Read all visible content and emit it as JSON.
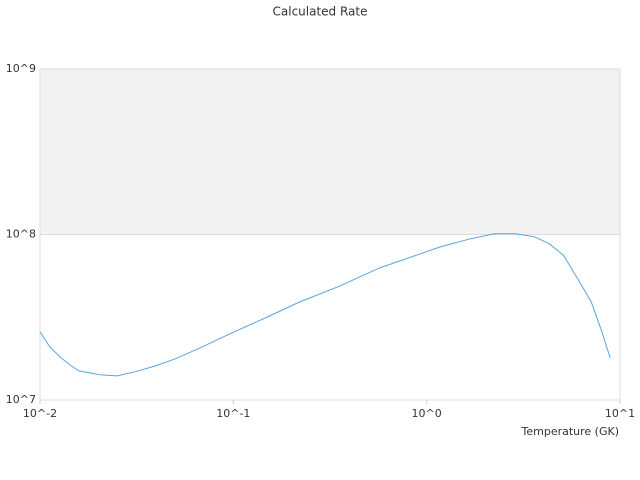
{
  "chart_data": {
    "type": "line",
    "title": "Calculated Rate",
    "x_label": "Temperature (GK)",
    "x": [
      0.01,
      0.01126,
      0.0127,
      0.0143,
      0.0159,
      0.0204,
      0.025,
      0.031,
      0.039,
      0.05,
      0.067,
      0.096,
      0.146,
      0.22,
      0.355,
      0.57,
      0.92,
      1.17,
      1.67,
      2.24,
      2.86,
      3.6,
      4.3,
      5.1,
      6.1,
      7.1,
      8.0,
      8.9
    ],
    "values": [
      25800000,
      20900000,
      18200000,
      16300000,
      15000000,
      14200000,
      14000000,
      14800000,
      16000000,
      17700000,
      20600000,
      25100000,
      31300000,
      39100000,
      48800000,
      62800000,
      76200000,
      84000000,
      94000000,
      101000000,
      101000000,
      97000000,
      88000000,
      75000000,
      53000000,
      39100000,
      26500000,
      17900000
    ],
    "color": "#5ba3e0",
    "xlim": [
      0.01,
      10
    ],
    "ylim": [
      10000000,
      1000000000
    ],
    "xticks": [
      {
        "value": 0.01,
        "label": "10^-2"
      },
      {
        "value": 0.1,
        "label": "10^-1"
      },
      {
        "value": 1,
        "label": "10^0"
      },
      {
        "value": 10,
        "label": "10^1"
      }
    ],
    "yticks": [
      {
        "value": 10000000,
        "label": "10^7"
      },
      {
        "value": 100000000,
        "label": "10^8"
      },
      {
        "value": 1000000000,
        "label": "10^9"
      }
    ],
    "xlog": true,
    "ylog": true,
    "grid": true,
    "band_color": "#f2f2f2"
  }
}
